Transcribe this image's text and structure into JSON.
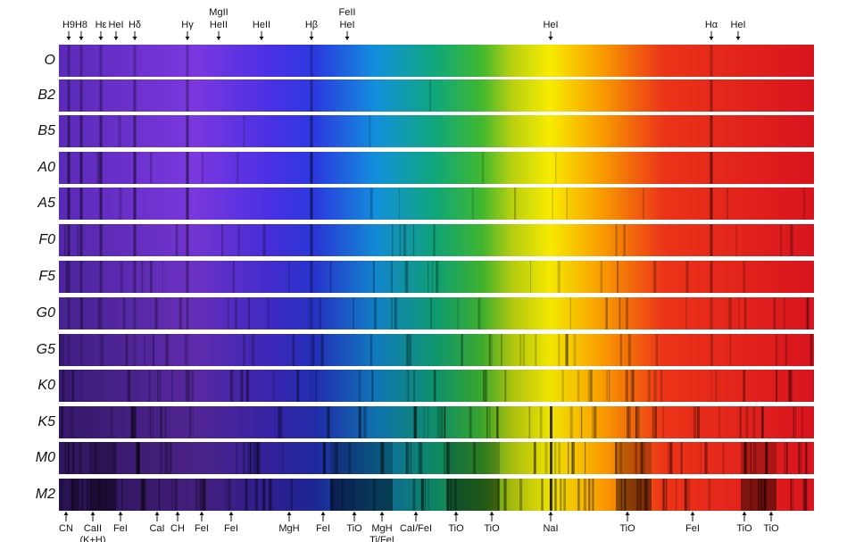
{
  "top_labels": [
    [
      "H9"
    ],
    [
      "H8"
    ],
    [
      "Hε"
    ],
    [
      "HeI"
    ],
    [
      "Hδ"
    ],
    [
      "Hγ"
    ],
    [
      "MgII",
      "HeII"
    ],
    [
      "HeII"
    ],
    [
      "Hβ"
    ],
    [
      "FeII",
      "HeI"
    ],
    [
      "HeI"
    ],
    [
      "Hα"
    ],
    [
      "HeI"
    ]
  ],
  "spectral_types": [
    "O",
    "B2",
    "B5",
    "A0",
    "A5",
    "F0",
    "F5",
    "G0",
    "G5",
    "K0",
    "K5",
    "M0",
    "M2"
  ],
  "bottom_labels": [
    [
      "CN"
    ],
    [
      "CaII",
      "(K+H)"
    ],
    [
      "FeI"
    ],
    [
      "CaI"
    ],
    [
      "CH"
    ],
    [
      "FeI"
    ],
    [
      "FeI"
    ],
    [
      "MgH"
    ],
    [
      "FeI"
    ],
    [
      "TiO"
    ],
    [
      "MgH",
      "Ti/FeI"
    ],
    [
      "CaI/FeI"
    ],
    [
      "TiO"
    ],
    [
      "TiO"
    ],
    [
      "NaI"
    ],
    [
      "TiO"
    ],
    [
      "FeI"
    ],
    [
      "TiO"
    ],
    [
      "TiO"
    ]
  ]
}
